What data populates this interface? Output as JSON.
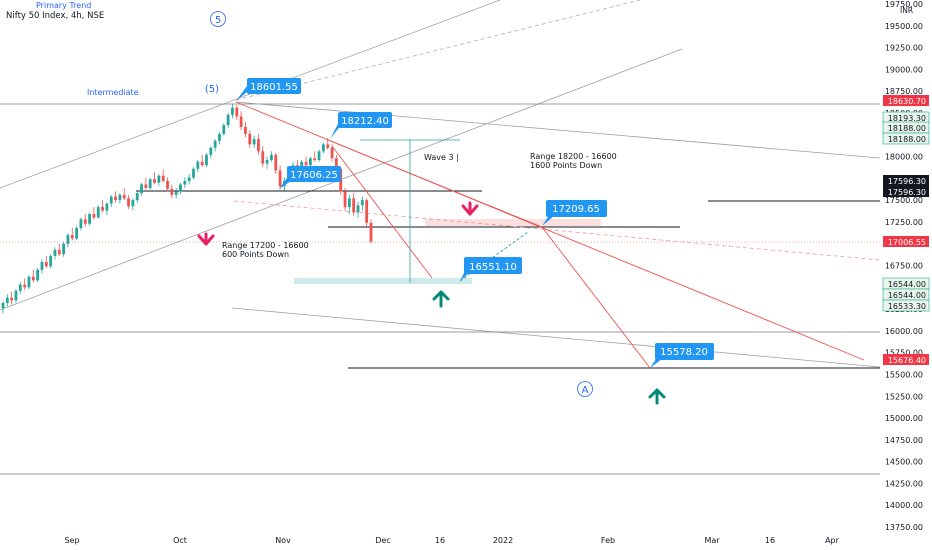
{
  "header": {
    "primary_trend": "Primary Trend",
    "symbol": "Nifty 50 Index, 4h, NSE",
    "currency": "INR"
  },
  "colors": {
    "bull": "#26a69a",
    "bear": "#ef5350",
    "blue": "#2196f3",
    "teal_arrow": "#00897b",
    "pink_arrow": "#e91e63",
    "last_price_bg": "#f23645"
  },
  "chart_data": {
    "type": "candlestick",
    "y_ticks": [
      19750,
      19500,
      19250,
      19000,
      18750,
      18500,
      18250,
      18000,
      17750,
      17500,
      17250,
      17000,
      16750,
      16500,
      16250,
      16000,
      15750,
      15500,
      15250,
      15000,
      14750,
      14500,
      14250,
      14000,
      13750
    ],
    "ylim": [
      13600,
      19850
    ],
    "x_ticks": [
      "Sep",
      "Oct",
      "Nov",
      "Dec",
      "16",
      "2022",
      "Feb",
      "Mar",
      "16",
      "Apr"
    ],
    "price_labels": [
      {
        "value": "18630.70",
        "type": "red"
      },
      {
        "value": "18193.30",
        "type": "green"
      },
      {
        "value": "18188.00",
        "type": "green"
      },
      {
        "value": "18188.00",
        "type": "green"
      },
      {
        "value": "17596.30",
        "type": "dark"
      },
      {
        "value": "17596.30",
        "type": "dark"
      },
      {
        "value": "17006.55",
        "type": "red"
      },
      {
        "value": "16544.00",
        "type": "green"
      },
      {
        "value": "16544.00",
        "type": "green"
      },
      {
        "value": "16533.30",
        "type": "green"
      },
      {
        "value": "15676.40",
        "type": "red"
      }
    ],
    "callouts": [
      "18601.55",
      "18212.40",
      "17606.25",
      "17209.65",
      "16551.10",
      "15578.20"
    ],
    "annotations": {
      "intermediate": "Intermediate",
      "wave5_primary": "5",
      "wave5_intermediate": "(5)",
      "wave3": "Wave 3 |",
      "waveA": "A",
      "range1_line1": "Range 18200 - 16600",
      "range1_line2": "1600 Points Down",
      "range2_line1": "Range 17200 - 16600",
      "range2_line2": "600 Points Down"
    },
    "candles": [
      [
        16260,
        16340,
        16200,
        16320
      ],
      [
        16320,
        16420,
        16280,
        16380
      ],
      [
        16380,
        16450,
        16300,
        16350
      ],
      [
        16350,
        16480,
        16320,
        16460
      ],
      [
        16460,
        16560,
        16420,
        16530
      ],
      [
        16530,
        16600,
        16470,
        16500
      ],
      [
        16500,
        16640,
        16480,
        16620
      ],
      [
        16620,
        16700,
        16560,
        16580
      ],
      [
        16580,
        16720,
        16560,
        16700
      ],
      [
        16700,
        16820,
        16660,
        16790
      ],
      [
        16790,
        16860,
        16720,
        16740
      ],
      [
        16740,
        16880,
        16720,
        16860
      ],
      [
        16860,
        16960,
        16820,
        16930
      ],
      [
        16930,
        17000,
        16860,
        16880
      ],
      [
        16880,
        17020,
        16850,
        17000
      ],
      [
        17000,
        17120,
        16960,
        17100
      ],
      [
        17100,
        17180,
        17040,
        17060
      ],
      [
        17060,
        17200,
        17040,
        17180
      ],
      [
        17180,
        17300,
        17150,
        17280
      ],
      [
        17280,
        17340,
        17200,
        17230
      ],
      [
        17230,
        17360,
        17210,
        17340
      ],
      [
        17340,
        17420,
        17280,
        17300
      ],
      [
        17300,
        17440,
        17290,
        17420
      ],
      [
        17420,
        17500,
        17360,
        17380
      ],
      [
        17380,
        17480,
        17330,
        17460
      ],
      [
        17460,
        17560,
        17420,
        17540
      ],
      [
        17540,
        17600,
        17470,
        17500
      ],
      [
        17500,
        17580,
        17460,
        17560
      ],
      [
        17560,
        17640,
        17500,
        17520
      ],
      [
        17520,
        17560,
        17400,
        17430
      ],
      [
        17430,
        17520,
        17380,
        17500
      ],
      [
        17500,
        17600,
        17470,
        17580
      ],
      [
        17580,
        17700,
        17550,
        17680
      ],
      [
        17680,
        17760,
        17620,
        17640
      ],
      [
        17640,
        17760,
        17620,
        17740
      ],
      [
        17740,
        17820,
        17680,
        17700
      ],
      [
        17700,
        17800,
        17660,
        17780
      ],
      [
        17780,
        17850,
        17700,
        17720
      ],
      [
        17720,
        17760,
        17600,
        17630
      ],
      [
        17630,
        17680,
        17520,
        17560
      ],
      [
        17560,
        17640,
        17520,
        17600
      ],
      [
        17600,
        17700,
        17570,
        17680
      ],
      [
        17680,
        17760,
        17640,
        17720
      ],
      [
        17720,
        17800,
        17680,
        17760
      ],
      [
        17760,
        17880,
        17740,
        17860
      ],
      [
        17860,
        17960,
        17820,
        17940
      ],
      [
        17940,
        18020,
        17880,
        17900
      ],
      [
        17900,
        18040,
        17880,
        18020
      ],
      [
        18020,
        18120,
        17980,
        18100
      ],
      [
        18100,
        18200,
        18060,
        18180
      ],
      [
        18180,
        18280,
        18140,
        18260
      ],
      [
        18260,
        18380,
        18240,
        18360
      ],
      [
        18360,
        18500,
        18330,
        18480
      ],
      [
        18480,
        18604,
        18440,
        18560
      ],
      [
        18560,
        18590,
        18420,
        18460
      ],
      [
        18460,
        18520,
        18300,
        18340
      ],
      [
        18340,
        18400,
        18220,
        18260
      ],
      [
        18260,
        18300,
        18100,
        18140
      ],
      [
        18140,
        18240,
        18100,
        18200
      ],
      [
        18200,
        18260,
        18020,
        18060
      ],
      [
        18060,
        18120,
        17880,
        17920
      ],
      [
        17920,
        18000,
        17860,
        17960
      ],
      [
        17960,
        18060,
        17940,
        18020
      ],
      [
        18020,
        18040,
        17800,
        17840
      ],
      [
        17840,
        17900,
        17620,
        17660
      ],
      [
        17660,
        17760,
        17610,
        17720
      ],
      [
        17720,
        17860,
        17700,
        17840
      ],
      [
        17840,
        17940,
        17800,
        17900
      ],
      [
        17900,
        17960,
        17820,
        17860
      ],
      [
        17860,
        17960,
        17840,
        17940
      ],
      [
        17940,
        18000,
        17880,
        17900
      ],
      [
        17900,
        18000,
        17880,
        17980
      ],
      [
        17980,
        18060,
        17940,
        17960
      ],
      [
        17960,
        18080,
        17940,
        18060
      ],
      [
        18060,
        18160,
        18040,
        18140
      ],
      [
        18140,
        18212,
        18080,
        18100
      ],
      [
        18100,
        18140,
        17940,
        17980
      ],
      [
        17980,
        18020,
        17820,
        17860
      ],
      [
        17860,
        17880,
        17560,
        17600
      ],
      [
        17600,
        17640,
        17380,
        17420
      ],
      [
        17420,
        17560,
        17340,
        17520
      ],
      [
        17520,
        17580,
        17320,
        17360
      ],
      [
        17360,
        17480,
        17300,
        17440
      ],
      [
        17440,
        17540,
        17380,
        17500
      ],
      [
        17500,
        17520,
        17200,
        17240
      ],
      [
        17240,
        17280,
        17000,
        17026
      ]
    ]
  }
}
